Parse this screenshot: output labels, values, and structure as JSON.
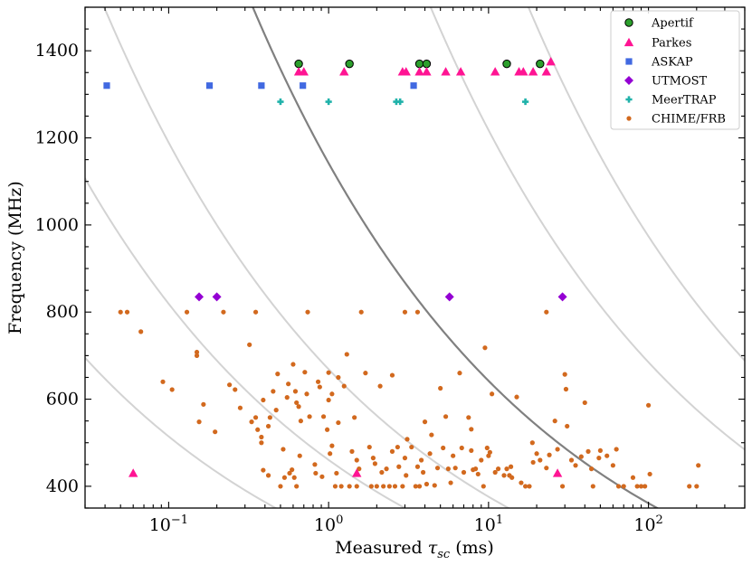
{
  "chart_data": {
    "type": "scatter",
    "xscale": "log",
    "xlim": [
      0.03,
      400
    ],
    "ylim": [
      350,
      1500
    ],
    "xlabel_prefix": "Measured ",
    "xlabel_symbol": "τ",
    "xlabel_subscript": "sc",
    "xlabel_suffix": " (ms)",
    "ylabel": "Frequency (MHz)",
    "x_tick_labels": [
      {
        "value": 0.1,
        "base": "10",
        "exp": "−1"
      },
      {
        "value": 1,
        "base": "10",
        "exp": "0"
      },
      {
        "value": 10,
        "base": "10",
        "exp": "1"
      },
      {
        "value": 100,
        "base": "10",
        "exp": "2"
      }
    ],
    "y_ticks": [
      400,
      600,
      800,
      1000,
      1200,
      1400
    ],
    "y_tick_labels": [
      "400",
      "600",
      "800",
      "1000",
      "1200",
      "1400"
    ],
    "legend": {
      "placement": "top-right"
    },
    "scaling_curves": {
      "index": -4,
      "reference_freq_mhz": 1000,
      "highlight": {
        "tau_at_ref_ms": 1.7,
        "color": "#808080"
      },
      "faint": {
        "tau_at_ref_ms": [
          0.007,
          0.045,
          0.2,
          22,
          90
        ],
        "color": "#d3d3d3"
      }
    },
    "series": [
      {
        "name": "Apertif",
        "marker": "circle",
        "color": "#2ca02c",
        "edge": "#000000",
        "points": [
          [
            0.65,
            1370
          ],
          [
            1.35,
            1370
          ],
          [
            3.7,
            1370
          ],
          [
            4.1,
            1370
          ],
          [
            13,
            1370
          ],
          [
            21,
            1370
          ]
        ]
      },
      {
        "name": "Parkes",
        "marker": "triangle",
        "color": "#ff1493",
        "points": [
          [
            0.65,
            1352
          ],
          [
            0.7,
            1352
          ],
          [
            1.25,
            1352
          ],
          [
            2.9,
            1352
          ],
          [
            3.05,
            1352
          ],
          [
            3.7,
            1352
          ],
          [
            4.1,
            1352
          ],
          [
            5.4,
            1352
          ],
          [
            6.7,
            1352
          ],
          [
            11,
            1352
          ],
          [
            15.5,
            1352
          ],
          [
            16.5,
            1352
          ],
          [
            19,
            1352
          ],
          [
            23,
            1352
          ],
          [
            24.5,
            1375
          ],
          [
            0.06,
            430
          ],
          [
            1.5,
            430
          ],
          [
            27,
            430
          ]
        ]
      },
      {
        "name": "ASKAP",
        "marker": "square",
        "color": "#4169e1",
        "points": [
          [
            0.041,
            1320
          ],
          [
            0.18,
            1320
          ],
          [
            0.38,
            1320
          ],
          [
            0.69,
            1320
          ],
          [
            3.4,
            1320
          ]
        ]
      },
      {
        "name": "UTMOST",
        "marker": "diamond",
        "color": "#9400d3",
        "points": [
          [
            0.155,
            835
          ],
          [
            0.2,
            835
          ],
          [
            5.7,
            835
          ],
          [
            29,
            835
          ]
        ]
      },
      {
        "name": "MeerTRAP",
        "marker": "plus",
        "color": "#20b2aa",
        "points": [
          [
            0.5,
            1283
          ],
          [
            1.0,
            1283
          ],
          [
            2.65,
            1283
          ],
          [
            2.8,
            1283
          ],
          [
            17,
            1283
          ]
        ]
      },
      {
        "name": "CHIME/FRB",
        "marker": "dot",
        "color": "#d2691e",
        "points": [
          [
            0.05,
            800
          ],
          [
            0.055,
            800
          ],
          [
            0.13,
            800
          ],
          [
            0.22,
            800
          ],
          [
            0.35,
            800
          ],
          [
            0.74,
            800
          ],
          [
            1.6,
            800
          ],
          [
            3,
            800
          ],
          [
            3.6,
            800
          ],
          [
            23,
            800
          ],
          [
            0.067,
            755
          ],
          [
            0.092,
            640
          ],
          [
            0.105,
            622
          ],
          [
            0.15,
            700
          ],
          [
            0.15,
            708
          ],
          [
            0.155,
            548
          ],
          [
            0.165,
            588
          ],
          [
            0.195,
            525
          ],
          [
            0.24,
            633
          ],
          [
            0.26,
            622
          ],
          [
            0.28,
            580
          ],
          [
            0.32,
            725
          ],
          [
            0.33,
            548
          ],
          [
            0.35,
            558
          ],
          [
            0.36,
            530
          ],
          [
            0.38,
            513
          ],
          [
            0.38,
            500
          ],
          [
            0.39,
            598
          ],
          [
            0.39,
            437
          ],
          [
            0.42,
            425
          ],
          [
            0.42,
            538
          ],
          [
            0.43,
            558
          ],
          [
            0.45,
            618
          ],
          [
            0.47,
            575
          ],
          [
            0.48,
            658
          ],
          [
            0.5,
            400
          ],
          [
            0.52,
            485
          ],
          [
            0.53,
            420
          ],
          [
            0.55,
            604
          ],
          [
            0.56,
            635
          ],
          [
            0.57,
            430
          ],
          [
            0.59,
            438
          ],
          [
            0.6,
            680
          ],
          [
            0.61,
            420
          ],
          [
            0.62,
            618
          ],
          [
            0.63,
            400
          ],
          [
            0.63,
            592
          ],
          [
            0.65,
            583
          ],
          [
            0.66,
            470
          ],
          [
            0.67,
            550
          ],
          [
            0.71,
            662
          ],
          [
            0.73,
            612
          ],
          [
            0.76,
            560
          ],
          [
            0.82,
            450
          ],
          [
            0.83,
            430
          ],
          [
            0.86,
            640
          ],
          [
            0.88,
            628
          ],
          [
            0.91,
            422
          ],
          [
            0.93,
            560
          ],
          [
            0.98,
            530
          ],
          [
            1.0,
            598
          ],
          [
            1.0,
            661
          ],
          [
            1.02,
            475
          ],
          [
            1.05,
            493
          ],
          [
            1.05,
            612
          ],
          [
            1.1,
            400
          ],
          [
            1.12,
            430
          ],
          [
            1.15,
            546
          ],
          [
            1.15,
            650
          ],
          [
            1.2,
            400
          ],
          [
            1.25,
            630
          ],
          [
            1.3,
            703
          ],
          [
            1.35,
            400
          ],
          [
            1.4,
            480
          ],
          [
            1.45,
            558
          ],
          [
            1.5,
            460
          ],
          [
            1.5,
            400
          ],
          [
            1.55,
            440
          ],
          [
            1.7,
            660
          ],
          [
            1.8,
            490
          ],
          [
            1.85,
            400
          ],
          [
            1.9,
            465
          ],
          [
            1.95,
            452
          ],
          [
            2.0,
            400
          ],
          [
            2.1,
            630
          ],
          [
            2.15,
            432
          ],
          [
            2.2,
            400
          ],
          [
            2.3,
            440
          ],
          [
            2.4,
            400
          ],
          [
            2.5,
            655
          ],
          [
            2.5,
            480
          ],
          [
            2.6,
            400
          ],
          [
            2.7,
            490
          ],
          [
            2.75,
            445
          ],
          [
            2.9,
            400
          ],
          [
            3.0,
            465
          ],
          [
            3.05,
            425
          ],
          [
            3.1,
            508
          ],
          [
            3.3,
            490
          ],
          [
            3.5,
            400
          ],
          [
            3.6,
            445
          ],
          [
            3.7,
            400
          ],
          [
            3.8,
            460
          ],
          [
            3.9,
            432
          ],
          [
            4.0,
            548
          ],
          [
            4.1,
            405
          ],
          [
            4.3,
            475
          ],
          [
            4.4,
            518
          ],
          [
            4.6,
            402
          ],
          [
            4.8,
            442
          ],
          [
            5.0,
            625
          ],
          [
            5.2,
            488
          ],
          [
            5.4,
            560
          ],
          [
            5.6,
            440
          ],
          [
            5.8,
            408
          ],
          [
            6.0,
            470
          ],
          [
            6.2,
            442
          ],
          [
            6.6,
            660
          ],
          [
            6.8,
            488
          ],
          [
            7.0,
            432
          ],
          [
            7.5,
            558
          ],
          [
            7.8,
            482
          ],
          [
            8.0,
            438
          ],
          [
            8.3,
            440
          ],
          [
            8.6,
            428
          ],
          [
            9.0,
            460
          ],
          [
            9.3,
            400
          ],
          [
            9.8,
            488
          ],
          [
            10.0,
            470
          ],
          [
            10.2,
            478
          ],
          [
            10.5,
            612
          ],
          [
            11.0,
            432
          ],
          [
            11.5,
            440
          ],
          [
            12.5,
            425
          ],
          [
            13.0,
            440
          ],
          [
            13.5,
            425
          ],
          [
            14.0,
            420
          ],
          [
            15.0,
            605
          ],
          [
            16.0,
            408
          ],
          [
            17.0,
            400
          ],
          [
            18.0,
            400
          ],
          [
            19.0,
            455
          ],
          [
            20.0,
            475
          ],
          [
            21.0,
            460
          ],
          [
            23.0,
            442
          ],
          [
            24.0,
            472
          ],
          [
            26.0,
            550
          ],
          [
            27.0,
            485
          ],
          [
            29.0,
            400
          ],
          [
            30.0,
            657
          ],
          [
            31.0,
            538
          ],
          [
            33.0,
            460
          ],
          [
            35.0,
            448
          ],
          [
            38.0,
            468
          ],
          [
            40.0,
            592
          ],
          [
            42.0,
            480
          ],
          [
            44.0,
            440
          ],
          [
            45.0,
            400
          ],
          [
            50.0,
            482
          ],
          [
            55.0,
            470
          ],
          [
            60.0,
            448
          ],
          [
            63.0,
            485
          ],
          [
            65.0,
            400
          ],
          [
            70.0,
            400
          ],
          [
            80.0,
            420
          ],
          [
            85.0,
            400
          ],
          [
            90.0,
            400
          ],
          [
            95.0,
            400
          ],
          [
            100.0,
            586
          ],
          [
            102.0,
            428
          ],
          [
            180.0,
            400
          ],
          [
            205.0,
            448
          ],
          [
            200.0,
            400
          ],
          [
            7.8,
            531
          ],
          [
            13.8,
            445
          ],
          [
            18.8,
            500
          ],
          [
            9.5,
            718
          ],
          [
            30.5,
            623
          ],
          [
            49.0,
            465
          ]
        ]
      }
    ]
  }
}
